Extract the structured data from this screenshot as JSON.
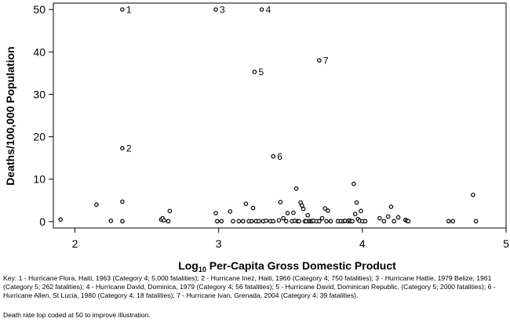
{
  "chart_data": {
    "type": "scatter",
    "xlabel_main": "Log",
    "xlabel_sub": "10",
    "xlabel_rest": " Per-Capita Gross Domestic Product",
    "ylabel": "Deaths/100,000 Population",
    "xlim": [
      1.85,
      5.0
    ],
    "ylim": [
      -1.5,
      51.5
    ],
    "xticks": [
      2,
      3,
      4,
      5
    ],
    "yticks": [
      0,
      10,
      20,
      30,
      40,
      50
    ],
    "grid": false,
    "legend": "none",
    "points": [
      {
        "x": 1.9,
        "y": 0.5
      },
      {
        "x": 2.15,
        "y": 4.0
      },
      {
        "x": 2.25,
        "y": 0.2
      },
      {
        "x": 2.33,
        "y": 4.7
      },
      {
        "x": 2.33,
        "y": 0.1
      },
      {
        "x": 2.6,
        "y": 0.5
      },
      {
        "x": 2.61,
        "y": 0.8
      },
      {
        "x": 2.62,
        "y": 0.3
      },
      {
        "x": 2.65,
        "y": 0.1
      },
      {
        "x": 2.66,
        "y": 2.5
      },
      {
        "x": 2.98,
        "y": 2.0
      },
      {
        "x": 2.99,
        "y": 0.1
      },
      {
        "x": 3.02,
        "y": 0.1
      },
      {
        "x": 3.08,
        "y": 2.4
      },
      {
        "x": 3.1,
        "y": 0.1
      },
      {
        "x": 3.14,
        "y": 0.1
      },
      {
        "x": 3.17,
        "y": 0.1
      },
      {
        "x": 3.19,
        "y": 4.2
      },
      {
        "x": 3.21,
        "y": 0.1
      },
      {
        "x": 3.23,
        "y": 0.1
      },
      {
        "x": 3.24,
        "y": 3.2
      },
      {
        "x": 3.26,
        "y": 0.1
      },
      {
        "x": 3.28,
        "y": 0.1
      },
      {
        "x": 3.31,
        "y": 0.1
      },
      {
        "x": 3.33,
        "y": 0.2
      },
      {
        "x": 3.36,
        "y": 0.1
      },
      {
        "x": 3.38,
        "y": 0.1
      },
      {
        "x": 3.42,
        "y": 0.3
      },
      {
        "x": 3.43,
        "y": 4.6
      },
      {
        "x": 3.45,
        "y": 0.8
      },
      {
        "x": 3.47,
        "y": 0.1
      },
      {
        "x": 3.48,
        "y": 2.0
      },
      {
        "x": 3.51,
        "y": 0.1
      },
      {
        "x": 3.52,
        "y": 2.1
      },
      {
        "x": 3.53,
        "y": 0.2
      },
      {
        "x": 3.54,
        "y": 7.8
      },
      {
        "x": 3.55,
        "y": 0.1
      },
      {
        "x": 3.56,
        "y": 0.1
      },
      {
        "x": 3.57,
        "y": 4.5
      },
      {
        "x": 3.58,
        "y": 3.8
      },
      {
        "x": 3.59,
        "y": 3.0
      },
      {
        "x": 3.6,
        "y": 0.1
      },
      {
        "x": 3.61,
        "y": 0.1
      },
      {
        "x": 3.62,
        "y": 1.5
      },
      {
        "x": 3.63,
        "y": 0.1
      },
      {
        "x": 3.64,
        "y": 0.1
      },
      {
        "x": 3.65,
        "y": 0.1
      },
      {
        "x": 3.66,
        "y": 0.2
      },
      {
        "x": 3.68,
        "y": 0.1
      },
      {
        "x": 3.7,
        "y": 0.1
      },
      {
        "x": 3.72,
        "y": 0.8
      },
      {
        "x": 3.74,
        "y": 3.1
      },
      {
        "x": 3.75,
        "y": 0.1
      },
      {
        "x": 3.76,
        "y": 2.6
      },
      {
        "x": 3.78,
        "y": 0.1
      },
      {
        "x": 3.83,
        "y": 0.1
      },
      {
        "x": 3.85,
        "y": 0.1
      },
      {
        "x": 3.87,
        "y": 0.1
      },
      {
        "x": 3.88,
        "y": 0.2
      },
      {
        "x": 3.9,
        "y": 0.1
      },
      {
        "x": 3.91,
        "y": 0.3
      },
      {
        "x": 3.92,
        "y": 0.1
      },
      {
        "x": 3.93,
        "y": 0.1
      },
      {
        "x": 3.94,
        "y": 8.9
      },
      {
        "x": 3.95,
        "y": 1.8
      },
      {
        "x": 3.96,
        "y": 4.5
      },
      {
        "x": 3.97,
        "y": 0.6
      },
      {
        "x": 3.98,
        "y": 0.2
      },
      {
        "x": 3.99,
        "y": 2.5
      },
      {
        "x": 4.0,
        "y": 0.1
      },
      {
        "x": 4.02,
        "y": 0.1
      },
      {
        "x": 4.12,
        "y": 0.8
      },
      {
        "x": 4.15,
        "y": 0.1
      },
      {
        "x": 4.18,
        "y": 1.2
      },
      {
        "x": 4.2,
        "y": 3.5
      },
      {
        "x": 4.22,
        "y": 0.1
      },
      {
        "x": 4.25,
        "y": 1.0
      },
      {
        "x": 4.3,
        "y": 0.4
      },
      {
        "x": 4.31,
        "y": 0.2
      },
      {
        "x": 4.32,
        "y": 0.1
      },
      {
        "x": 4.6,
        "y": 0.1
      },
      {
        "x": 4.63,
        "y": 0.1
      },
      {
        "x": 4.77,
        "y": 6.3
      },
      {
        "x": 4.79,
        "y": 0.1
      }
    ],
    "labeled_points": [
      {
        "label": "1",
        "x": 2.33,
        "y": 50.0
      },
      {
        "label": "2",
        "x": 2.33,
        "y": 17.3
      },
      {
        "label": "3",
        "x": 2.98,
        "y": 50.0
      },
      {
        "label": "4",
        "x": 3.3,
        "y": 50.0
      },
      {
        "label": "5",
        "x": 3.25,
        "y": 35.3
      },
      {
        "label": "6",
        "x": 3.38,
        "y": 15.4
      },
      {
        "label": "7",
        "x": 3.7,
        "y": 38.0
      }
    ]
  },
  "notes": {
    "key": "Key: 1 - Hurricane Flora, Haiti, 1963 (Category 4; 5,000 fatalities); 2 - Hurricane Inez, Haiti, 1966 (Category 4; 750 fatalities); 3 - Hurricane Hattie, 1979 Belize, 1961 (Category 5; 262 fatalities); 4 - Hurricane David, Dominica, 1979 (Category 4; 56 fatalities); 5 - Hurricane David, Dominican Republic, (Category 5; 2000 fatalities); 6 - Hurricane Allen, St Lucia, 1980 (Category 4; 18 fatalities); 7 - Hurricane Ivan, Grenada, 2004 (Category 4; 39 fatalities).",
    "topcode": "Death rate top coded at 50 to improve illustration."
  }
}
